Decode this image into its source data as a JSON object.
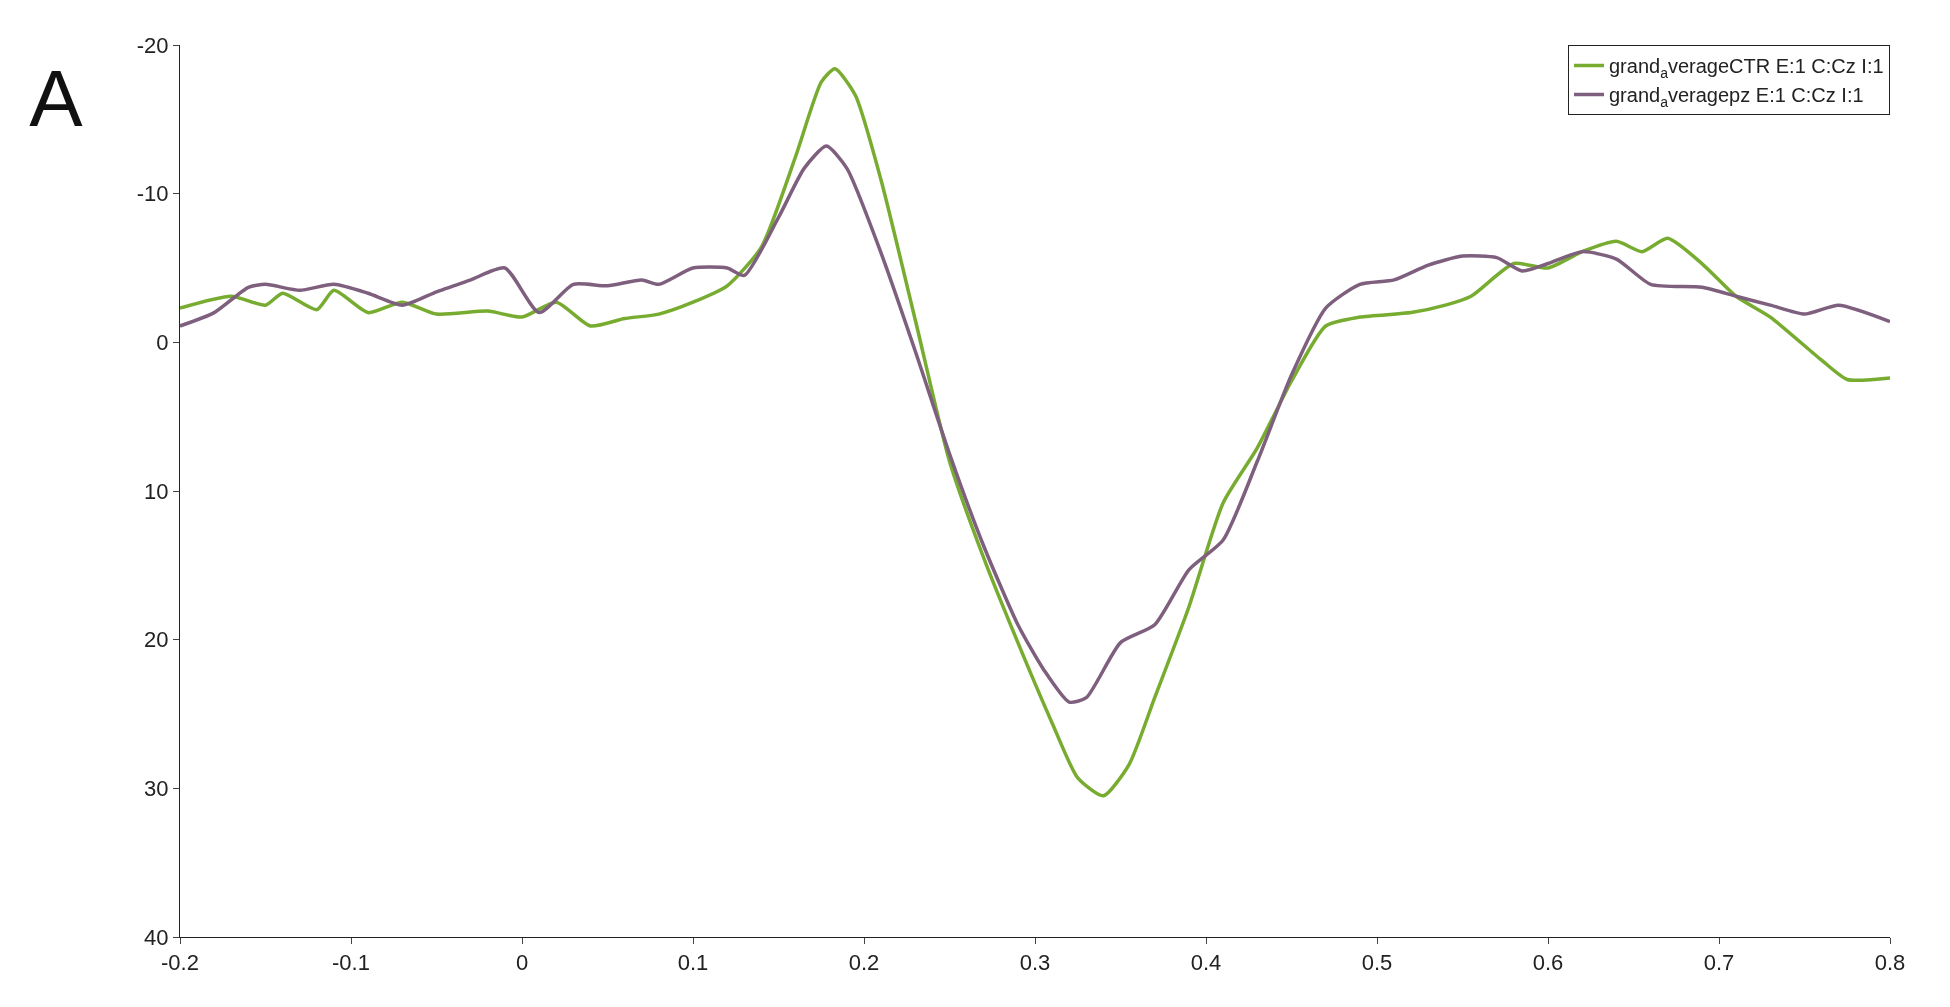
{
  "chart_data": {
    "type": "line",
    "title": "A",
    "xlim": [
      -0.2,
      0.8
    ],
    "xticks": [
      -0.2,
      -0.1,
      0,
      0.1,
      0.2,
      0.3,
      0.4,
      0.5,
      0.6,
      0.7,
      0.8
    ],
    "ylim": [
      40,
      -20
    ],
    "yticks": [
      -20,
      -10,
      0,
      10,
      20,
      30,
      40
    ],
    "legend": "top right",
    "marker": "none",
    "line_style": "solid",
    "series": [
      {
        "name": "grand$_{a}$verageCTR E:1 C:Cz I:1",
        "color": "#77ac30",
        "x": [
          -0.2,
          -0.17,
          -0.15,
          -0.14,
          -0.12,
          -0.11,
          -0.09,
          -0.07,
          -0.05,
          -0.02,
          0,
          0.02,
          0.04,
          0.06,
          0.08,
          0.1,
          0.12,
          0.14,
          0.16,
          0.175,
          0.183,
          0.195,
          0.21,
          0.23,
          0.25,
          0.27,
          0.29,
          0.31,
          0.325,
          0.34,
          0.355,
          0.37,
          0.39,
          0.41,
          0.43,
          0.45,
          0.47,
          0.49,
          0.52,
          0.54,
          0.555,
          0.58,
          0.6,
          0.62,
          0.64,
          0.655,
          0.67,
          0.69,
          0.71,
          0.73,
          0.76,
          0.775,
          0.8
        ],
        "values": [
          -2.3,
          -3.1,
          -2.5,
          -3.3,
          -2.2,
          -3.5,
          -2.0,
          -2.7,
          -1.9,
          -2.1,
          -1.7,
          -2.7,
          -1.1,
          -1.6,
          -1.9,
          -2.7,
          -3.8,
          -6.4,
          -12.5,
          -17.5,
          -18.4,
          -16.6,
          -10.9,
          -1.5,
          8.0,
          14.5,
          20.2,
          25.6,
          29.3,
          30.5,
          28.4,
          23.9,
          17.8,
          10.8,
          7.1,
          2.6,
          -1.1,
          -1.7,
          -2.0,
          -2.5,
          -3.1,
          -5.3,
          -5.0,
          -6.1,
          -6.8,
          -6.1,
          -7.0,
          -5.3,
          -3.1,
          -1.7,
          1.2,
          2.5,
          2.4
        ]
      },
      {
        "name": "grand$_{a}$veragepz E:1 C:Cz I:1",
        "color": "#7e5f7e",
        "x": [
          -0.2,
          -0.18,
          -0.16,
          -0.15,
          -0.13,
          -0.11,
          -0.09,
          -0.07,
          -0.05,
          -0.03,
          -0.01,
          0.01,
          0.03,
          0.05,
          0.07,
          0.08,
          0.1,
          0.12,
          0.13,
          0.15,
          0.165,
          0.178,
          0.19,
          0.21,
          0.23,
          0.25,
          0.27,
          0.29,
          0.305,
          0.32,
          0.33,
          0.35,
          0.37,
          0.39,
          0.41,
          0.43,
          0.45,
          0.47,
          0.49,
          0.51,
          0.53,
          0.55,
          0.57,
          0.585,
          0.6,
          0.62,
          0.64,
          0.66,
          0.69,
          0.71,
          0.73,
          0.75,
          0.77,
          0.8
        ],
        "values": [
          -1.1,
          -2.0,
          -3.7,
          -3.9,
          -3.5,
          -3.9,
          -3.3,
          -2.5,
          -3.4,
          -4.2,
          -5.0,
          -2.0,
          -3.9,
          -3.8,
          -4.2,
          -3.9,
          -5.0,
          -5.0,
          -4.5,
          -8.4,
          -11.7,
          -13.2,
          -11.7,
          -6.0,
          0.6,
          7.5,
          13.7,
          19.0,
          22.0,
          24.2,
          23.9,
          20.2,
          19.0,
          15.3,
          13.3,
          8.0,
          2.2,
          -2.3,
          -3.9,
          -4.2,
          -5.2,
          -5.8,
          -5.7,
          -4.8,
          -5.3,
          -6.1,
          -5.6,
          -3.9,
          -3.7,
          -3.1,
          -2.5,
          -1.9,
          -2.5,
          -1.4
        ]
      }
    ]
  }
}
